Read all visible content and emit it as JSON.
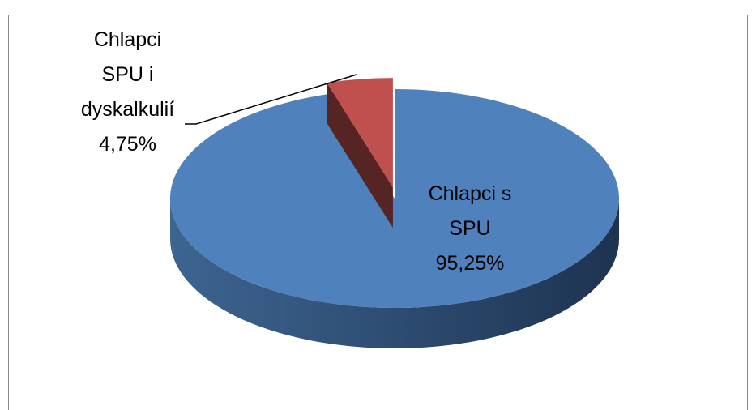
{
  "chart_data": {
    "type": "pie",
    "categories": [
      "Chlapci s SPU",
      "Chlapci SPU i dyskalkulií"
    ],
    "values": [
      95.25,
      4.75
    ],
    "value_labels": [
      "95,25%",
      "4,75%"
    ],
    "colors": [
      "#4f81bd",
      "#c0504d"
    ]
  }
}
